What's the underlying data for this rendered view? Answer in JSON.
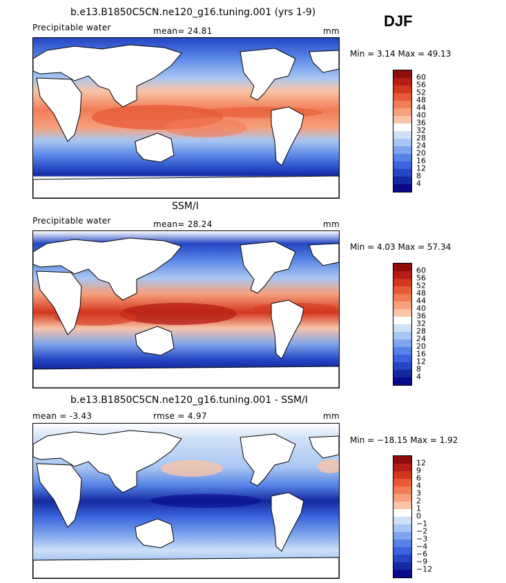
{
  "season": "DJF",
  "panels": [
    {
      "title": "b.e13.B1850C5CN.ne120_g16.tuning.001 (yrs 1-9)",
      "left": "Precipitable water",
      "mid": "mean=  24.81",
      "units": "mm",
      "minmax": "Min =   3.14  Max =  49.13",
      "colorbar": {
        "labels": [
          "60",
          "56",
          "52",
          "48",
          "44",
          "40",
          "36",
          "32",
          "28",
          "24",
          "20",
          "16",
          "12",
          "8",
          "4"
        ],
        "colors": [
          "#8e0d0d",
          "#b41e14",
          "#d3371f",
          "#e65a37",
          "#f27c56",
          "#f6a07d",
          "#f9c4a8",
          "#ffffff",
          "#cfe0f7",
          "#a9c6f2",
          "#7fa5ec",
          "#5684e6",
          "#3964dd",
          "#2446c4",
          "#14299f",
          "#0a0a8a"
        ]
      }
    },
    {
      "title": "SSM/I",
      "left": "Precipitable water",
      "mid": "mean=  28.24",
      "units": "mm",
      "minmax": "Min =   4.03  Max =  57.34",
      "colorbar": {
        "labels": [
          "60",
          "56",
          "52",
          "48",
          "44",
          "40",
          "36",
          "32",
          "28",
          "24",
          "20",
          "16",
          "12",
          "8",
          "4"
        ],
        "colors": [
          "#8e0d0d",
          "#b41e14",
          "#d3371f",
          "#e65a37",
          "#f27c56",
          "#f6a07d",
          "#f9c4a8",
          "#ffffff",
          "#cfe0f7",
          "#a9c6f2",
          "#7fa5ec",
          "#5684e6",
          "#3964dd",
          "#2446c4",
          "#14299f",
          "#0a0a8a"
        ]
      }
    },
    {
      "title": "b.e13.B1850C5CN.ne120_g16.tuning.001 - SSM/I",
      "left": "mean =   -3.43",
      "mid": "rmse =   4.97",
      "units": "mm",
      "minmax": "Min = −18.15  Max =   1.92",
      "colorbar": {
        "labels": [
          "12",
          "9",
          "6",
          "4",
          "3",
          "2",
          "1",
          "0",
          "−1",
          "−2",
          "−3",
          "−4",
          "−6",
          "−9",
          "−12"
        ],
        "colors": [
          "#8e0d0d",
          "#b41e14",
          "#d3371f",
          "#e65a37",
          "#f27c56",
          "#f6a07d",
          "#f9c4a8",
          "#ffffff",
          "#cfe0f7",
          "#a9c6f2",
          "#7fa5ec",
          "#5684e6",
          "#3964dd",
          "#2446c4",
          "#14299f",
          "#0a0a8a"
        ]
      }
    }
  ]
}
